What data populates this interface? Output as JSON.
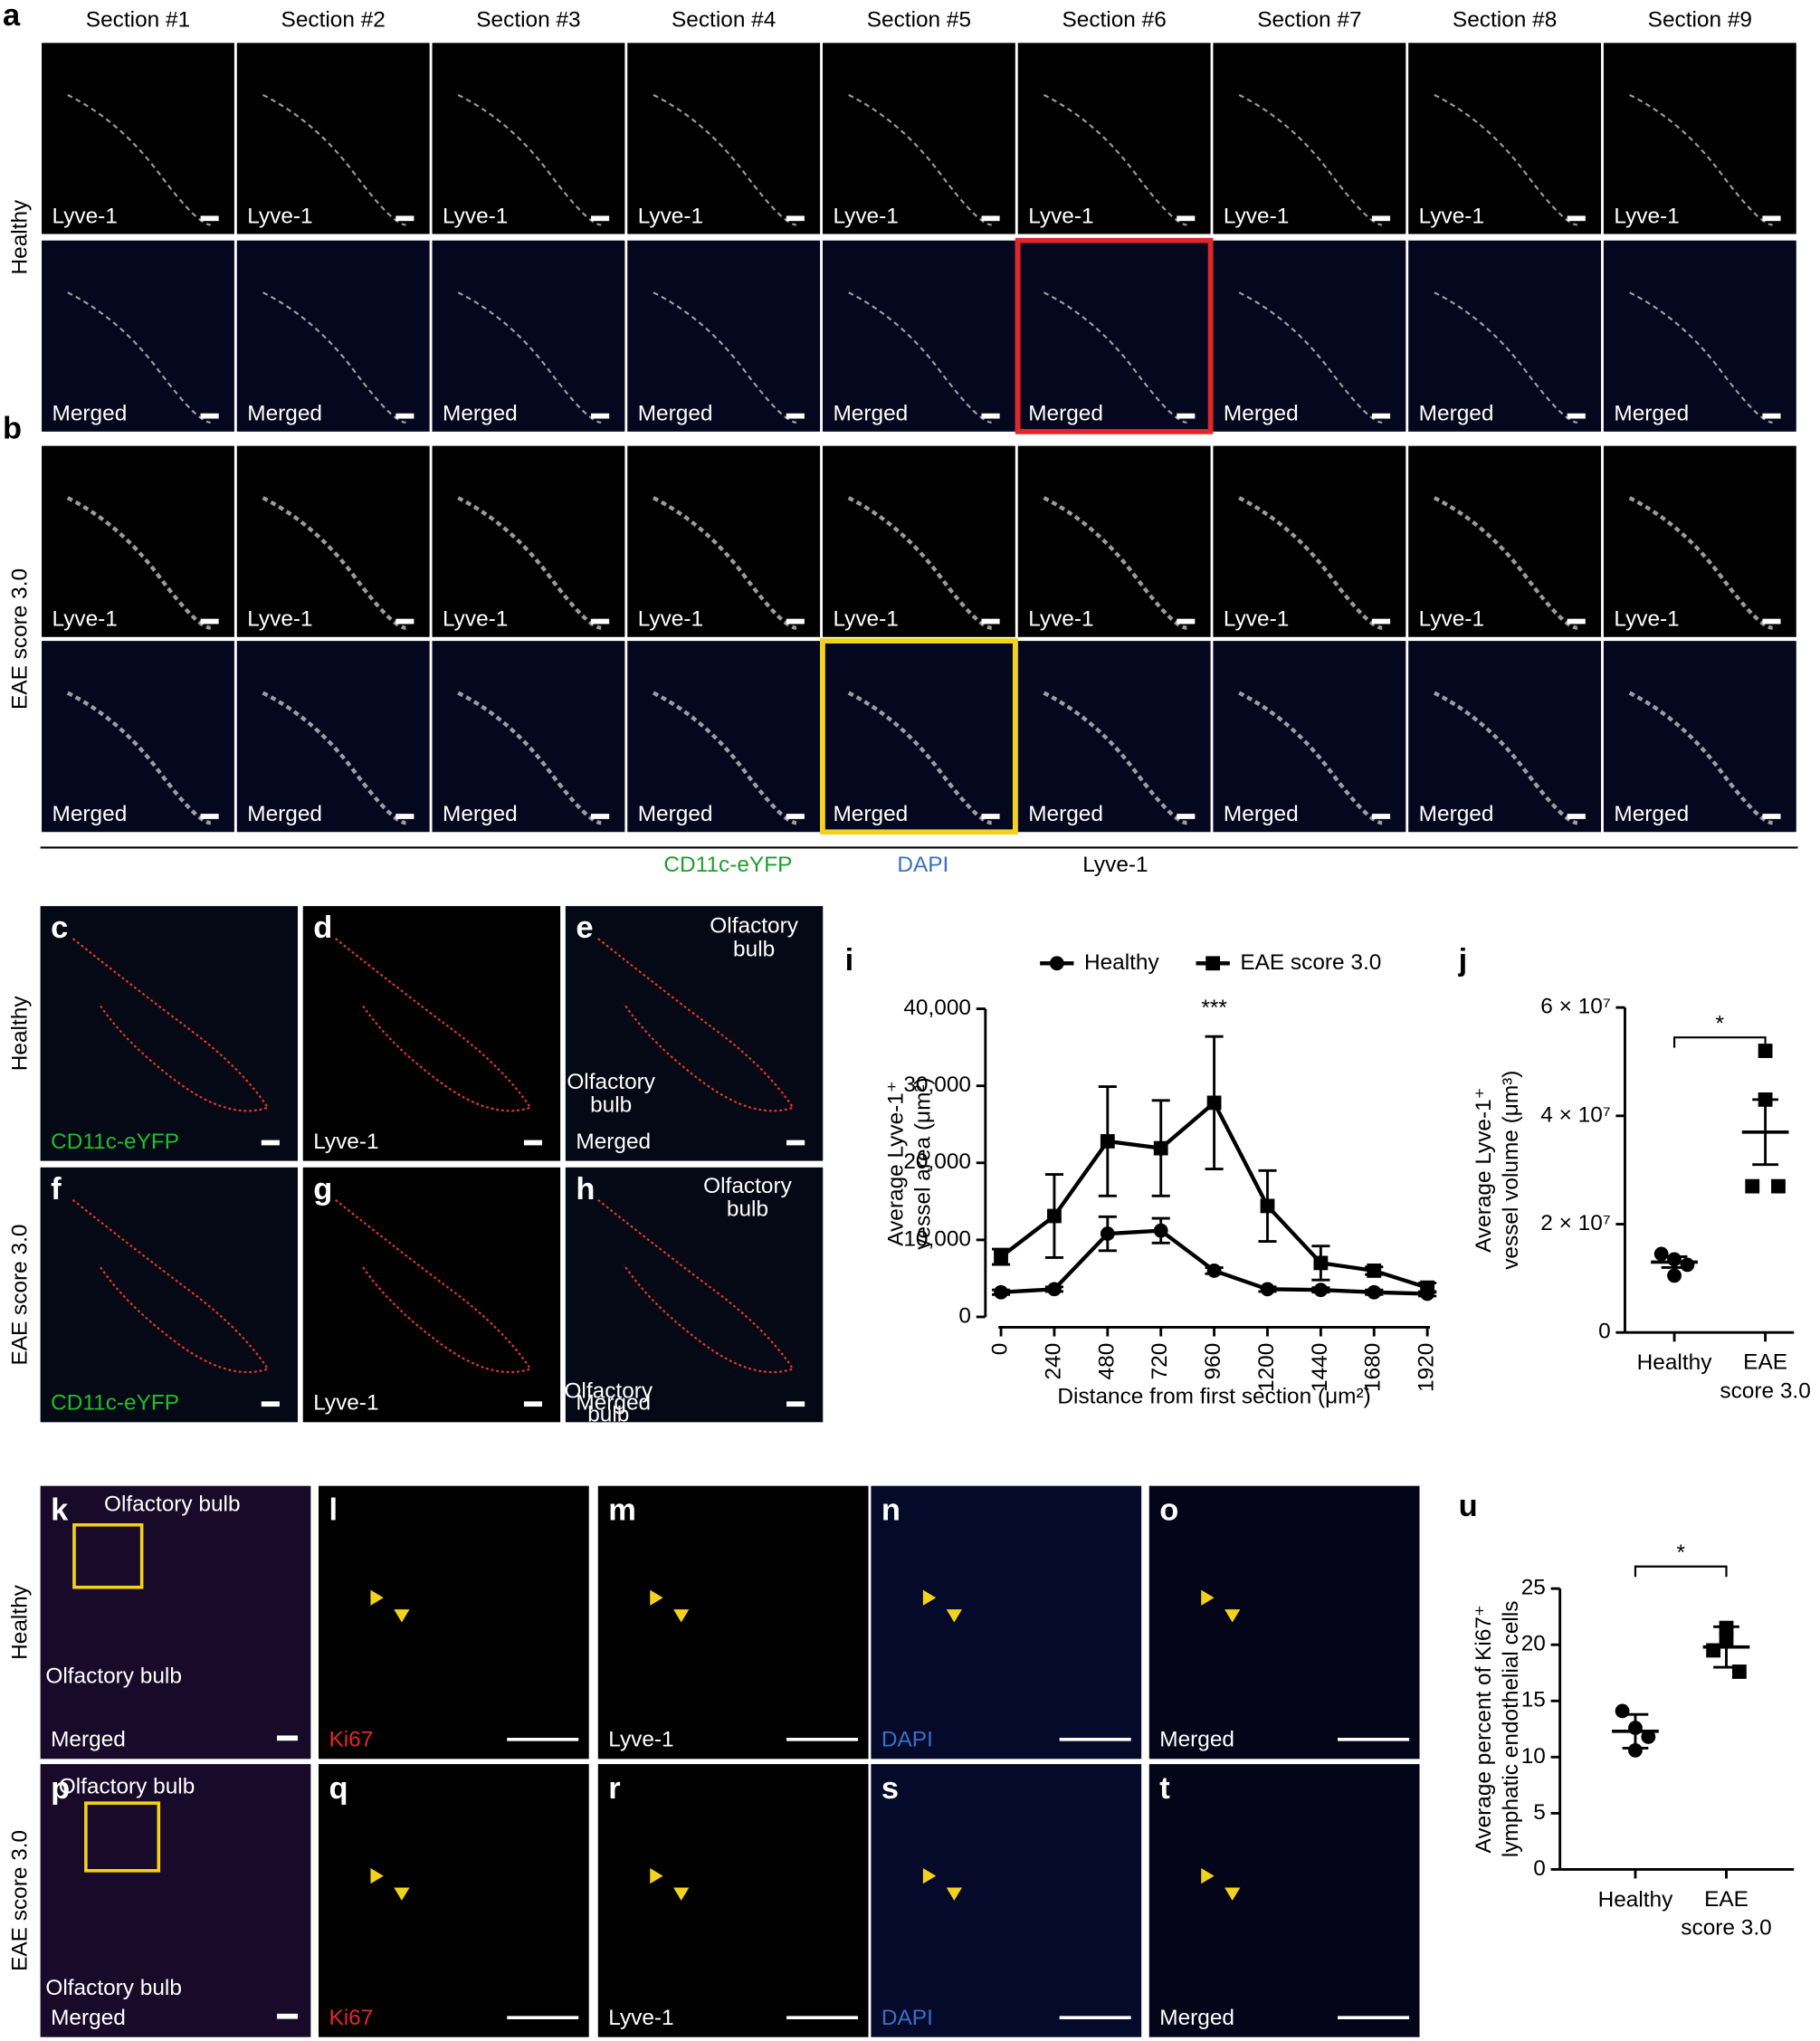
{
  "sections": [
    "Section #1",
    "Section #2",
    "Section #3",
    "Section #4",
    "Section #5",
    "Section #6",
    "Section #7",
    "Section #8",
    "Section #9"
  ],
  "panel_a": {
    "letter": "a",
    "condition": "Healthy",
    "stain_label": "Lyve-1",
    "merged_label": "Merged"
  },
  "panel_b": {
    "letter": "b",
    "condition": "EAE score 3.0",
    "stain_label": "Lyve-1",
    "merged_label": "Merged"
  },
  "channel_legend": [
    {
      "name": "CD11c-eYFP",
      "color": "#1f9e2c"
    },
    {
      "name": "DAPI",
      "color": "#3b6fc6"
    },
    {
      "name": "Lyve-1",
      "color": "#000000"
    }
  ],
  "panels_c_h": {
    "row_labels": [
      "Healthy",
      "EAE score 3.0"
    ],
    "panels": [
      {
        "letter": "c",
        "label": "CD11c-eYFP",
        "label_color": "#1fc02e",
        "annotations": []
      },
      {
        "letter": "d",
        "label": "Lyve-1",
        "label_color": "#ffffff",
        "annotations": []
      },
      {
        "letter": "e",
        "label": "Merged",
        "label_color": "#ffffff",
        "annotations": [
          [
            "Olfactory",
            "bulb"
          ],
          [
            "Olfactory",
            "bulb"
          ]
        ]
      },
      {
        "letter": "f",
        "label": "CD11c-eYFP",
        "label_color": "#1fc02e",
        "annotations": []
      },
      {
        "letter": "g",
        "label": "Lyve-1",
        "label_color": "#ffffff",
        "annotations": []
      },
      {
        "letter": "h",
        "label": "Merged",
        "label_color": "#ffffff",
        "annotations": [
          [
            "Olfactory",
            "bulb"
          ],
          [
            "Olfactory",
            "bulb"
          ]
        ]
      }
    ]
  },
  "panels_k_t": {
    "row_labels": [
      "Healthy",
      "EAE score 3.0"
    ],
    "panels": [
      {
        "letter": "k",
        "label": "Merged",
        "label_color": "#ffffff",
        "annotations": [
          "Olfactory bulb",
          "Olfactory bulb"
        ]
      },
      {
        "letter": "l",
        "label": "Ki67",
        "label_color": "#e8262a",
        "annotations": []
      },
      {
        "letter": "m",
        "label": "Lyve-1",
        "label_color": "#ffffff",
        "annotations": []
      },
      {
        "letter": "n",
        "label": "DAPI",
        "label_color": "#3b6fc6",
        "annotations": []
      },
      {
        "letter": "o",
        "label": "Merged",
        "label_color": "#ffffff",
        "annotations": []
      },
      {
        "letter": "p",
        "label": "Merged",
        "label_color": "#ffffff",
        "annotations": [
          "Olfactory bulb",
          "Olfactory bulb"
        ]
      },
      {
        "letter": "q",
        "label": "Ki67",
        "label_color": "#e8262a",
        "annotations": []
      },
      {
        "letter": "r",
        "label": "Lyve-1",
        "label_color": "#ffffff",
        "annotations": []
      },
      {
        "letter": "s",
        "label": "DAPI",
        "label_color": "#3b6fc6",
        "annotations": []
      },
      {
        "letter": "t",
        "label": "Merged",
        "label_color": "#ffffff",
        "annotations": []
      }
    ]
  },
  "chart_data": [
    {
      "type": "line",
      "letter": "i",
      "ylabel": [
        "Average Lyve-1⁺",
        "vessel area (μm²)"
      ],
      "xlabel": "Distance from first section (μm²)",
      "x": [
        0,
        240,
        480,
        720,
        960,
        1200,
        1440,
        1680,
        1920
      ],
      "xlim": [
        0,
        1920
      ],
      "xticks": [
        0,
        240,
        480,
        720,
        960,
        1200,
        1440,
        1680,
        1920
      ],
      "ylim": [
        0,
        40000
      ],
      "yticks": [
        0,
        {
          "value": 10000,
          "label": "10,000"
        },
        {
          "value": 20000,
          "label": "20,000"
        },
        {
          "value": 30000,
          "label": "30,000"
        },
        {
          "value": 40000,
          "label": "40,000"
        }
      ],
      "series": [
        {
          "name": "Healthy",
          "color": "#000000",
          "marker": "circle",
          "values": [
            3200,
            3600,
            10800,
            11200,
            6000,
            3600,
            3500,
            3200,
            3000
          ],
          "errors": [
            300,
            300,
            2200,
            1600,
            400,
            300,
            300,
            300,
            300
          ]
        },
        {
          "name": "EAE score 3.0",
          "color": "#000000",
          "marker": "square",
          "values": [
            7800,
            13100,
            22800,
            21900,
            27800,
            14400,
            7000,
            6000,
            3800
          ],
          "errors": [
            1000,
            5400,
            7100,
            6200,
            8600,
            4600,
            2200,
            500,
            600
          ]
        }
      ],
      "annotation": "***"
    },
    {
      "type": "dot",
      "letter": "j",
      "ylabel": [
        "Average Lyve-1⁺",
        "vessel volume (μm³)"
      ],
      "categories": [
        "Healthy",
        "EAE score 3.0"
      ],
      "markers": [
        "circle",
        "square"
      ],
      "color": "#000000",
      "values": [
        [
          14500000,
          13500000,
          12500000,
          10500000
        ],
        [
          52000000,
          43000000,
          27000000,
          27000000
        ]
      ],
      "means": [
        13000000,
        37000000
      ],
      "errors": [
        1000000,
        6000000
      ],
      "ylim": [
        0,
        60000000
      ],
      "yticks": [
        0,
        {
          "value": 20000000,
          "label": "2 × 10⁷"
        },
        {
          "value": 40000000,
          "label": "4 × 10⁷"
        },
        {
          "value": 60000000,
          "label": "6 × 10⁷"
        }
      ],
      "significance": "*"
    },
    {
      "type": "dot",
      "letter": "u",
      "ylabel": [
        "Average percent of Ki67⁺",
        "lymphatic endothelial cells"
      ],
      "categories": [
        "Healthy",
        "EAE score 3.0"
      ],
      "markers": [
        "circle",
        "square"
      ],
      "color": "#000000",
      "values": [
        [
          14.1,
          12.6,
          11.8,
          10.6
        ],
        [
          21.5,
          20.5,
          19.5,
          17.6
        ]
      ],
      "means": [
        12.3,
        19.8
      ],
      "errors": [
        1.5,
        1.8
      ],
      "ylim": [
        0,
        25
      ],
      "yticks": [
        0,
        5,
        10,
        15,
        20,
        25
      ],
      "significance": "*"
    }
  ]
}
